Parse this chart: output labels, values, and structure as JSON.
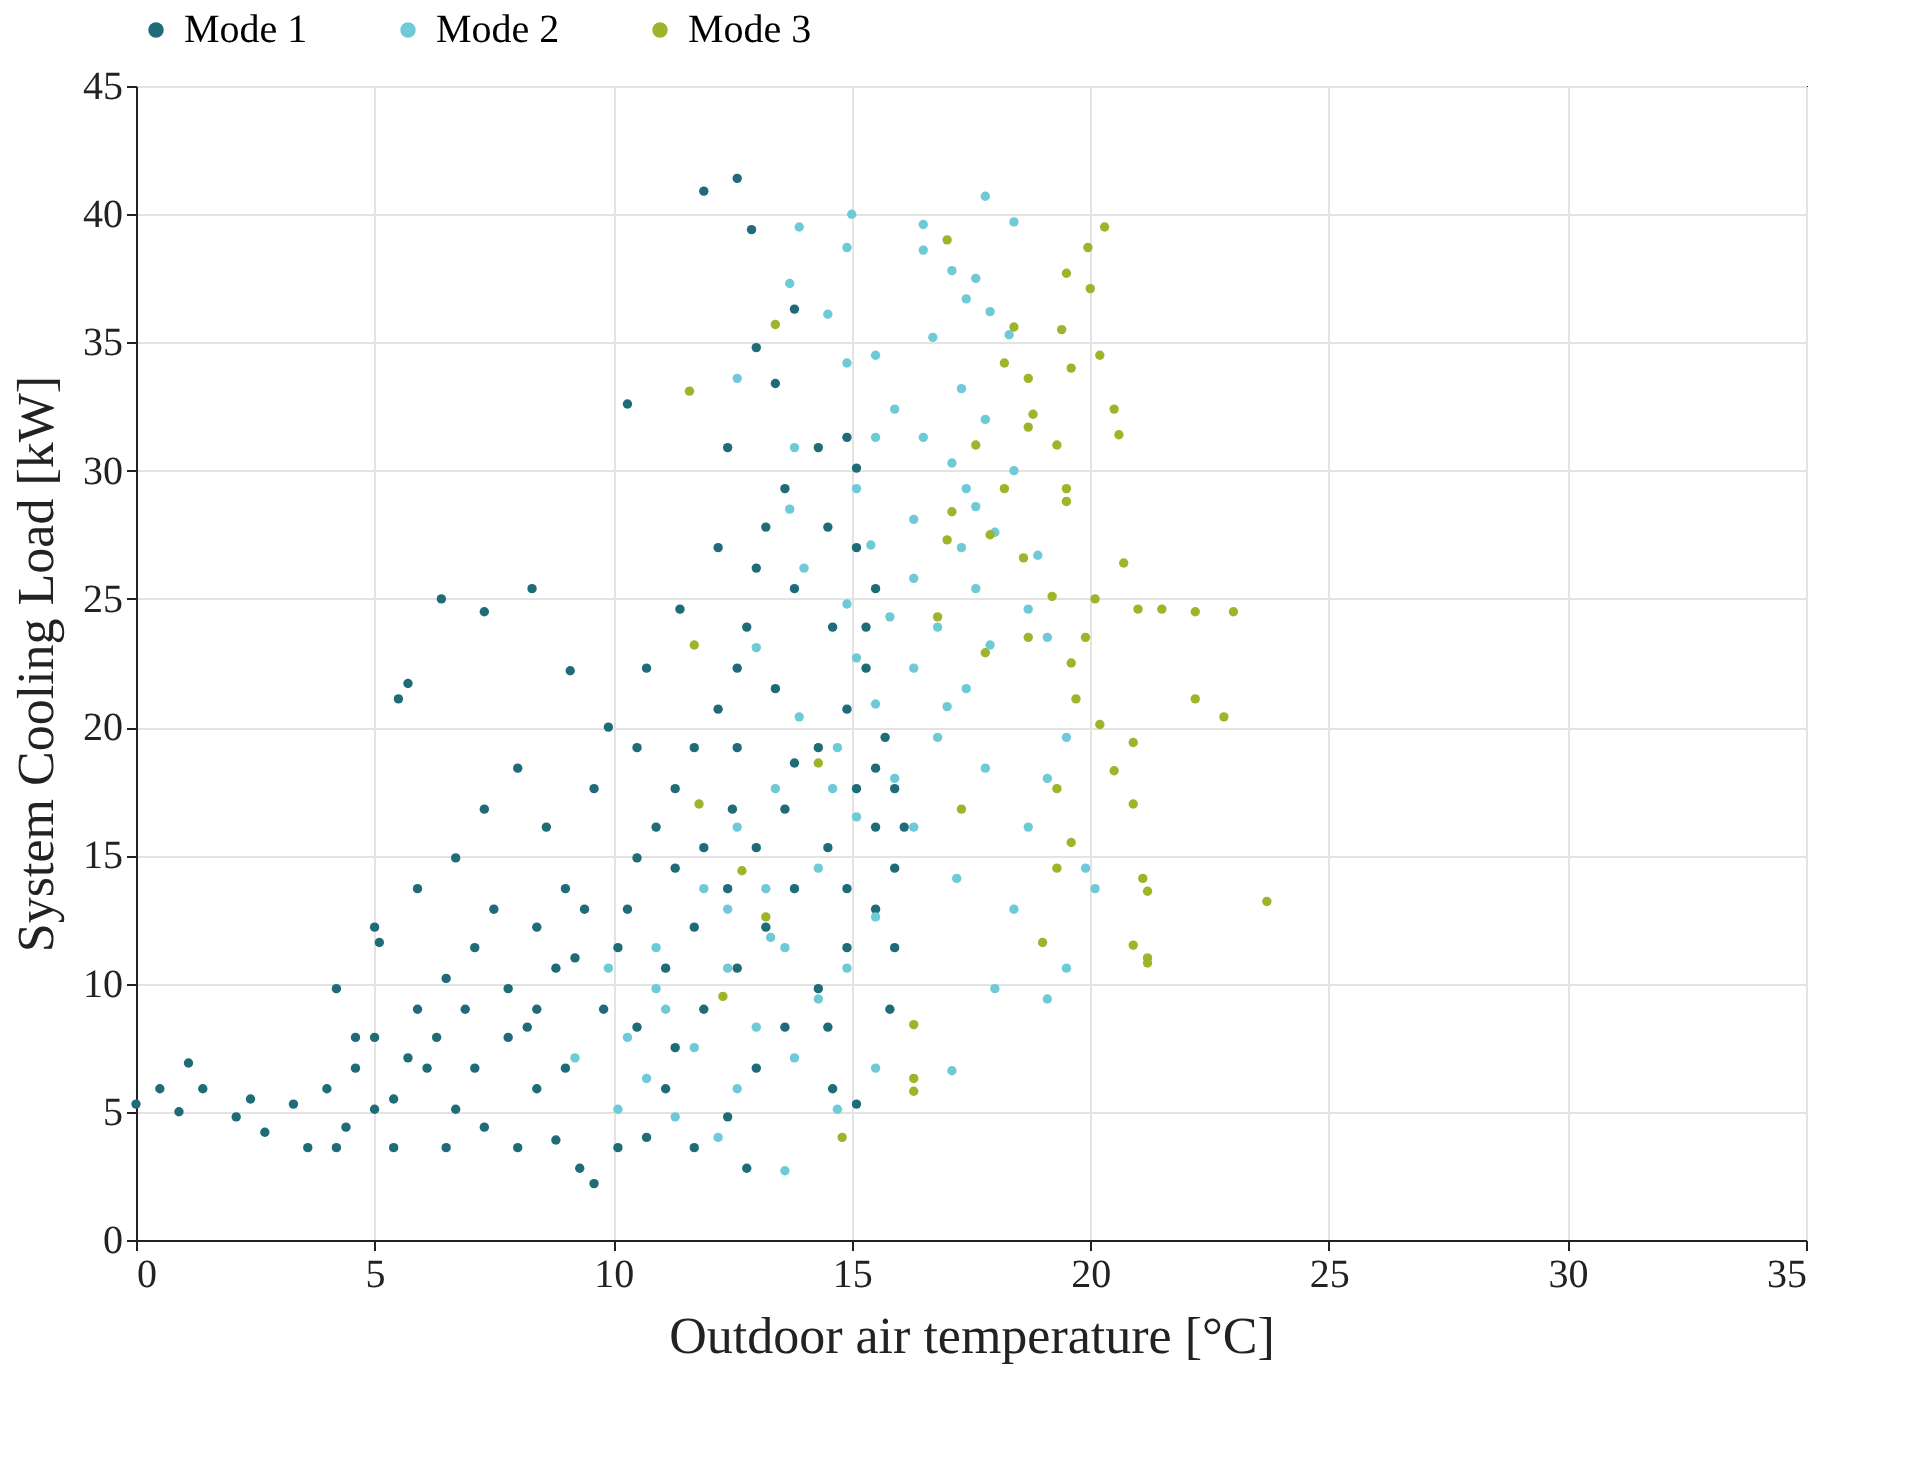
{
  "chart_data": {
    "type": "scatter",
    "xlabel": "Outdoor air temperature [°C]",
    "ylabel": "System Cooling Load [kW]",
    "xlim": [
      0,
      35
    ],
    "ylim": [
      0,
      45
    ],
    "xticks": [
      0,
      5,
      10,
      15,
      20,
      25,
      30,
      35
    ],
    "yticks": [
      0,
      5,
      10,
      15,
      20,
      25,
      30,
      35,
      40,
      45
    ],
    "grid": true,
    "legend": "top",
    "marker": "circle",
    "series": [
      {
        "name": "Mode 1",
        "color": "#1f6b78",
        "x": [
          0,
          0.5,
          0.9,
          1.1,
          1.4,
          2.1,
          2.4,
          2.7,
          3.3,
          4.0,
          4.6,
          5.0,
          5.1,
          5.5,
          5.7,
          6.4,
          7.3,
          8.3,
          10.3,
          11.9,
          12.6,
          12.9,
          13.8,
          13.4,
          3.6,
          4.4,
          5.4,
          6.1,
          6.7,
          7.3,
          8.0,
          8.4,
          9.0,
          9.3,
          9.6,
          8.8,
          5.9,
          6.5,
          7.1,
          7.8,
          8.4,
          9.0,
          9.2,
          9.8,
          10.3,
          10.5,
          10.9,
          11.3,
          11.7,
          12.2,
          12.6,
          12.8,
          13.0,
          13.2,
          13.6,
          14.3,
          14.9,
          15.1,
          14.5,
          13.8,
          14.6,
          15.1,
          15.5,
          15.3,
          14.9,
          14.3,
          13.6,
          13.0,
          12.4,
          11.7,
          11.1,
          10.5,
          11.1,
          11.7,
          12.4,
          13.0,
          13.6,
          14.3,
          14.9,
          15.5,
          15.9,
          16.1,
          15.9,
          15.5,
          15.1,
          15.8,
          15.9,
          7.3,
          8.0,
          6.7,
          5.9,
          5.0,
          4.2,
          4.6,
          5.4,
          6.5,
          7.1,
          7.8,
          8.4,
          8.6,
          9.6,
          9.9,
          9.1,
          10.5,
          10.7,
          11.4,
          12.2,
          12.4,
          13.0,
          12.5,
          11.9,
          11.3,
          10.1,
          9.4,
          8.8,
          8.2,
          7.5,
          6.9,
          6.3,
          5.7,
          5.0,
          4.2,
          10.1,
          10.7,
          11.3,
          11.9,
          12.6,
          13.2,
          13.8,
          14.5,
          15.1,
          15.7,
          15.3,
          13.4,
          12.6,
          13.8,
          12.8,
          14.6,
          14.5,
          14.9,
          15.5
        ],
        "values": [
          5.3,
          5.9,
          5.0,
          6.9,
          5.9,
          4.8,
          5.5,
          4.2,
          5.3,
          5.9,
          6.7,
          7.9,
          11.6,
          21.1,
          21.7,
          25.0,
          24.5,
          25.4,
          32.6,
          40.9,
          41.4,
          39.4,
          36.3,
          33.4,
          3.6,
          4.4,
          5.5,
          6.7,
          5.1,
          4.4,
          3.6,
          5.9,
          6.7,
          2.8,
          2.2,
          3.9,
          9.0,
          10.2,
          11.4,
          9.8,
          12.2,
          13.7,
          11.0,
          9.0,
          12.9,
          14.9,
          16.1,
          17.6,
          19.2,
          20.7,
          22.3,
          23.9,
          26.2,
          27.8,
          29.3,
          30.9,
          31.3,
          30.1,
          27.8,
          25.4,
          23.9,
          27.0,
          25.4,
          22.3,
          20.7,
          19.2,
          16.8,
          15.3,
          13.7,
          12.2,
          10.6,
          8.3,
          5.9,
          3.6,
          4.8,
          6.7,
          8.3,
          9.8,
          11.4,
          12.9,
          14.5,
          16.1,
          17.6,
          16.1,
          5.3,
          9.0,
          11.4,
          16.8,
          18.4,
          14.9,
          13.7,
          12.2,
          9.8,
          7.9,
          3.6,
          3.6,
          6.7,
          7.9,
          9.0,
          16.1,
          17.6,
          20.0,
          22.2,
          19.2,
          22.3,
          24.6,
          27.0,
          30.9,
          34.8,
          16.8,
          15.3,
          14.5,
          11.4,
          12.9,
          10.6,
          8.3,
          12.9,
          9.0,
          7.9,
          7.1,
          5.1,
          3.6,
          3.6,
          4.0,
          7.5,
          9.0,
          10.6,
          12.2,
          13.7,
          15.3,
          17.6,
          19.6,
          23.9,
          21.5,
          19.2,
          18.6,
          2.8,
          5.9,
          8.3,
          13.7,
          18.4
        ]
      },
      {
        "name": "Mode 2",
        "color": "#6ecad6",
        "x": [
          15.0,
          17.8,
          16.5,
          18.4,
          13.9,
          14.9,
          16.5,
          17.1,
          17.6,
          13.7,
          17.4,
          17.9,
          14.5,
          18.3,
          16.7,
          15.5,
          12.6,
          14.9,
          17.3,
          15.9,
          17.8,
          16.5,
          13.8,
          17.1,
          18.4,
          15.1,
          17.4,
          13.7,
          16.3,
          18.0,
          15.4,
          17.3,
          18.9,
          14.0,
          16.3,
          17.6,
          14.9,
          15.8,
          18.7,
          16.8,
          17.9,
          13.0,
          15.1,
          16.3,
          19.1,
          17.4,
          15.5,
          13.9,
          16.8,
          14.7,
          17.8,
          15.9,
          13.4,
          19.1,
          18.7,
          15.1,
          12.6,
          19.9,
          17.2,
          14.3,
          11.9,
          18.4,
          15.5,
          13.3,
          19.5,
          18.0,
          19.1,
          14.9,
          12.4,
          14.3,
          11.1,
          13.0,
          10.3,
          11.7,
          13.8,
          15.5,
          17.1,
          10.7,
          12.6,
          9.2,
          11.3,
          12.2,
          13.6,
          10.1,
          14.7,
          10.9,
          9.9,
          13.2,
          14.6,
          16.3,
          17.0,
          19.5,
          20.1,
          17.6,
          15.5,
          12.4,
          10.9,
          13.6
        ],
        "values": [
          40.0,
          40.7,
          39.6,
          39.7,
          39.5,
          38.7,
          38.6,
          37.8,
          37.5,
          37.3,
          36.7,
          36.2,
          36.1,
          35.3,
          35.2,
          34.5,
          33.6,
          34.2,
          33.2,
          32.4,
          32.0,
          31.3,
          30.9,
          30.3,
          30.0,
          29.3,
          29.3,
          28.5,
          28.1,
          27.6,
          27.1,
          27.0,
          26.7,
          26.2,
          25.8,
          25.4,
          24.8,
          24.3,
          24.6,
          23.9,
          23.2,
          23.1,
          22.7,
          22.3,
          23.5,
          21.5,
          20.9,
          20.4,
          19.6,
          19.2,
          18.4,
          18.0,
          17.6,
          18.0,
          16.1,
          16.5,
          16.1,
          14.5,
          14.1,
          14.5,
          13.7,
          12.9,
          12.6,
          11.8,
          10.6,
          9.8,
          9.4,
          10.6,
          10.6,
          9.4,
          9.0,
          8.3,
          7.9,
          7.5,
          7.1,
          6.7,
          6.6,
          6.3,
          5.9,
          7.1,
          4.8,
          4.0,
          2.7,
          5.1,
          5.1,
          9.8,
          10.6,
          13.7,
          17.6,
          16.1,
          20.8,
          19.6,
          13.7,
          28.6,
          31.3,
          12.9,
          11.4,
          11.4
        ]
      },
      {
        "name": "Mode 3",
        "color": "#9db52a",
        "x": [
          11.6,
          13.4,
          17.0,
          20.3,
          19.95,
          19.5,
          20.0,
          19.4,
          18.4,
          20.2,
          18.2,
          18.7,
          19.6,
          20.5,
          18.8,
          18.7,
          19.3,
          17.6,
          20.6,
          19.5,
          18.2,
          17.1,
          19.5,
          17.9,
          17.0,
          20.7,
          18.6,
          20.1,
          21.0,
          21.5,
          22.2,
          23.0,
          19.2,
          16.8,
          17.8,
          19.9,
          18.7,
          19.6,
          11.7,
          22.2,
          22.8,
          19.7,
          20.2,
          20.9,
          20.5,
          19.3,
          20.9,
          14.3,
          17.3,
          11.8,
          19.6,
          21.1,
          21.2,
          23.7,
          12.7,
          19.3,
          19.0,
          20.9,
          21.2,
          21.2,
          13.2,
          16.3,
          16.3,
          16.3,
          14.8,
          12.3
        ],
        "values": [
          33.1,
          35.7,
          39.0,
          39.5,
          38.7,
          37.7,
          37.1,
          35.5,
          35.6,
          34.5,
          34.2,
          33.6,
          34.0,
          32.4,
          32.2,
          31.7,
          31.0,
          31.0,
          31.4,
          29.3,
          29.3,
          28.4,
          28.8,
          27.5,
          27.3,
          26.4,
          26.6,
          25.0,
          24.6,
          24.6,
          24.5,
          24.5,
          25.1,
          24.3,
          22.9,
          23.5,
          23.5,
          22.5,
          23.2,
          21.1,
          20.4,
          21.1,
          20.1,
          19.4,
          18.3,
          17.6,
          17.0,
          18.6,
          16.8,
          17.0,
          15.5,
          14.1,
          13.6,
          13.2,
          14.4,
          14.5,
          11.6,
          11.5,
          11.0,
          10.8,
          12.6,
          8.4,
          6.3,
          5.8,
          4.0,
          9.5
        ]
      }
    ]
  }
}
